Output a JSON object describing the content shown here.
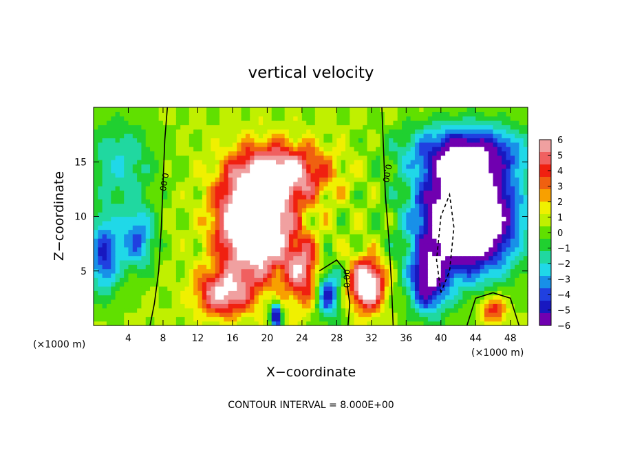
{
  "chart_data": {
    "type": "heatmap",
    "title": "vertical velocity",
    "xlabel": "X−coordinate",
    "ylabel": "Z−coordinate",
    "x_unit": "(×1000 m)",
    "x_unit_right": "(×1000 m)",
    "xlim": [
      0,
      50
    ],
    "ylim": [
      0,
      20
    ],
    "x_ticks": [
      4,
      8,
      12,
      16,
      20,
      24,
      28,
      32,
      36,
      40,
      44,
      48
    ],
    "y_ticks": [
      5,
      10,
      15
    ],
    "colorbar": {
      "ticks": [
        6,
        5,
        4,
        3,
        2,
        1,
        0,
        -1,
        -2,
        -3,
        -4,
        -5,
        -6
      ],
      "labels": [
        "6",
        "5",
        "4",
        "3",
        "2",
        "1",
        "0",
        "−1",
        "−2",
        "−3",
        "−4",
        "−5",
        "−6"
      ],
      "colors": [
        "#f0a0a0",
        "#f06060",
        "#f02010",
        "#f06010",
        "#f8a000",
        "#f0f000",
        "#c0f000",
        "#60e000",
        "#20d030",
        "#20d8a0",
        "#20d8e8",
        "#1890e8",
        "#2040e0",
        "#1818c0",
        "#7000b0"
      ]
    },
    "features": [
      {
        "kind": "updraft",
        "x": 18,
        "z": 9,
        "peak": 12
      },
      {
        "kind": "updraft",
        "x": 31.5,
        "z": 3.5,
        "peak": 9
      },
      {
        "kind": "downdraft",
        "x": 43,
        "z": 10,
        "peak": -12
      },
      {
        "kind": "downdraft",
        "x": 1.5,
        "z": 6,
        "peak": -7
      }
    ],
    "contour_labels": [
      "0.00",
      "0.00",
      "0.00"
    ],
    "contour_interval": 8.0,
    "footer": "CONTOUR INTERVAL =  8.000E+00"
  }
}
